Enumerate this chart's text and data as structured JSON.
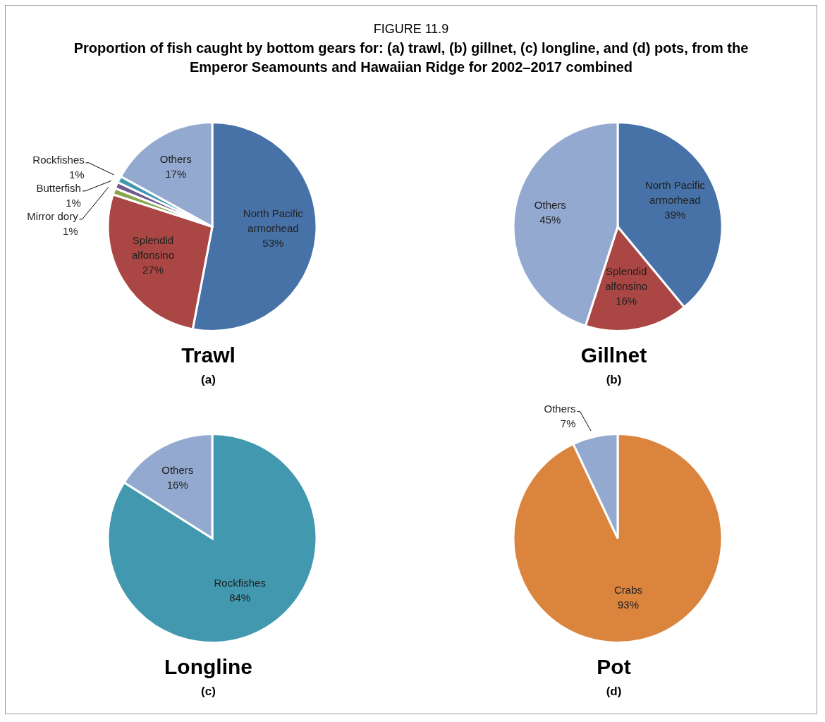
{
  "chart_data": [
    {
      "type": "pie",
      "title": "Trawl",
      "subtitle": "(a)",
      "annotations": [
        "FIGURE 11.9",
        "Proportion of fish caught by bottom gears for: (a) trawl, (b) gillnet, (c) longline, and (d) pots, from the Emperor Seamounts and Hawaiian Ridge for 2002–2017 combined"
      ],
      "categories": [
        "North Pacific armorhead",
        "Splendid alfonsino",
        "Mirror dory",
        "Butterfish",
        "Rockfishes",
        "Others"
      ],
      "values": [
        53,
        27,
        1,
        1,
        1,
        17
      ],
      "value_labels": [
        "53%",
        "27%",
        "1%",
        "1%",
        "1%",
        "17%"
      ],
      "colors": [
        "#4672a8",
        "#aa4643",
        "#89a54e",
        "#71588f",
        "#4198af",
        "#93a9cf"
      ]
    },
    {
      "type": "pie",
      "title": "Gillnet",
      "subtitle": "(b)",
      "categories": [
        "North Pacific armorhead",
        "Splendid alfonsino",
        "Others"
      ],
      "values": [
        39,
        16,
        45
      ],
      "value_labels": [
        "39%",
        "16%",
        "45%"
      ],
      "colors": [
        "#4672a8",
        "#aa4643",
        "#93a9cf"
      ]
    },
    {
      "type": "pie",
      "title": "Longline",
      "subtitle": "(c)",
      "categories": [
        "Rockfishes",
        "Others"
      ],
      "values": [
        84,
        16
      ],
      "value_labels": [
        "84%",
        "16%"
      ],
      "colors": [
        "#4198af",
        "#93a9cf"
      ]
    },
    {
      "type": "pie",
      "title": "Pot",
      "subtitle": "(d)",
      "categories": [
        "Crabs",
        "Others"
      ],
      "values": [
        93,
        7
      ],
      "value_labels": [
        "93%",
        "7%"
      ],
      "colors": [
        "#db843d",
        "#93a9cf"
      ]
    }
  ]
}
